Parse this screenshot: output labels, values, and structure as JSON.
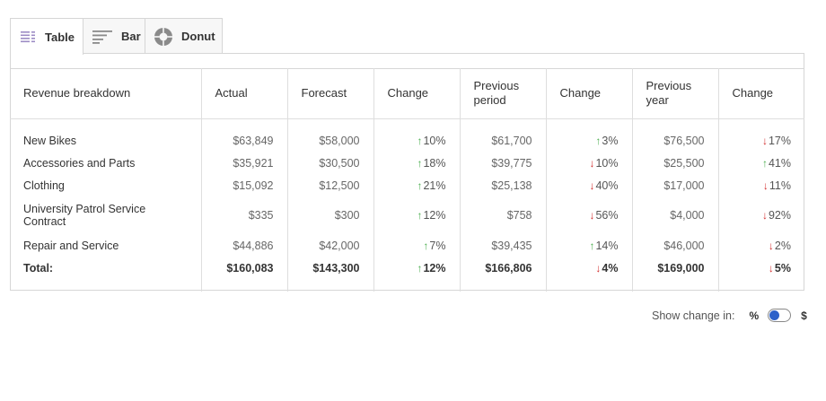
{
  "tabs": [
    {
      "label": "Table",
      "icon": "table-icon"
    },
    {
      "label": "Bar",
      "icon": "bar-icon"
    },
    {
      "label": "Donut",
      "icon": "donut-icon"
    }
  ],
  "table": {
    "headers": [
      "Revenue breakdown",
      "Actual",
      "Forecast",
      "Change",
      "Previous period",
      "Change",
      "Previous year",
      "Change"
    ],
    "rows": [
      {
        "name": "New Bikes",
        "actual": "$63,849",
        "forecast": "$58,000",
        "c1": "10%",
        "c1_dir": "up",
        "prev": "$61,700",
        "c2": "3%",
        "c2_dir": "up",
        "prev_year": "$76,500",
        "c3": "17%",
        "c3_dir": "down"
      },
      {
        "name": "Accessories and Parts",
        "actual": "$35,921",
        "forecast": "$30,500",
        "c1": "18%",
        "c1_dir": "up",
        "prev": "$39,775",
        "c2": "10%",
        "c2_dir": "down",
        "prev_year": "$25,500",
        "c3": "41%",
        "c3_dir": "up"
      },
      {
        "name": "Clothing",
        "actual": "$15,092",
        "forecast": "$12,500",
        "c1": "21%",
        "c1_dir": "up",
        "prev": "$25,138",
        "c2": "40%",
        "c2_dir": "down",
        "prev_year": "$17,000",
        "c3": "11%",
        "c3_dir": "down"
      },
      {
        "name": "University Patrol Service Contract",
        "actual": "$335",
        "forecast": "$300",
        "c1": "12%",
        "c1_dir": "up",
        "prev": "$758",
        "c2": "56%",
        "c2_dir": "down",
        "prev_year": "$4,000",
        "c3": "92%",
        "c3_dir": "down"
      },
      {
        "name": "Repair and Service",
        "actual": "$44,886",
        "forecast": "$42,000",
        "c1": "7%",
        "c1_dir": "up",
        "prev": "$39,435",
        "c2": "14%",
        "c2_dir": "up",
        "prev_year": "$46,000",
        "c3": "2%",
        "c3_dir": "down"
      }
    ],
    "total": {
      "name": "Total:",
      "actual": "$160,083",
      "forecast": "$143,300",
      "c1": "12%",
      "c1_dir": "up",
      "prev": "$166,806",
      "c2": "4%",
      "c2_dir": "down",
      "prev_year": "$169,000",
      "c3": "5%",
      "c3_dir": "down"
    }
  },
  "toggle": {
    "label": "Show change in:",
    "left_option": "%",
    "right_option": "$",
    "selected": "%"
  },
  "colors": {
    "up": "#4caf50",
    "down": "#d32f2f",
    "toggle_knob": "#2e62c9"
  }
}
